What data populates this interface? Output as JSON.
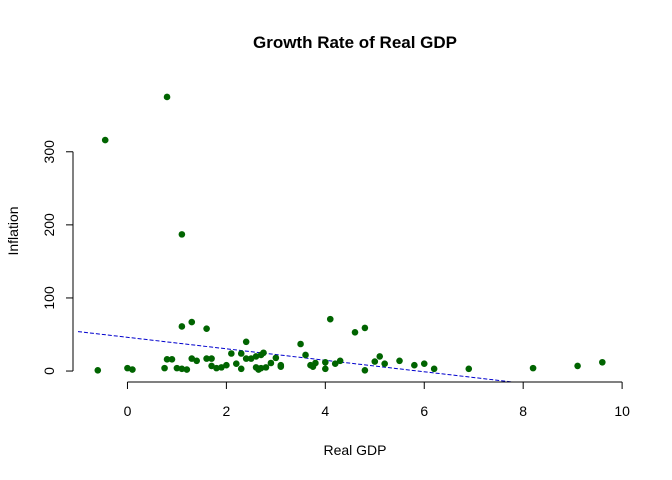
{
  "chart_data": {
    "type": "scatter",
    "title": "Growth Rate of Real GDP",
    "xlabel": "Real GDP",
    "ylabel": "Inflation",
    "xlim": [
      -1.0,
      10.2
    ],
    "ylim": [
      -15,
      390
    ],
    "xticks": [
      0,
      2,
      4,
      6,
      8,
      10
    ],
    "yticks": [
      0,
      100,
      200,
      300
    ],
    "point_color": "#006400",
    "line_color": "#0000cd",
    "grid": false,
    "legend": "none",
    "trend_line": {
      "x": [
        -1.0,
        10.2
      ],
      "y": [
        54,
        -34
      ]
    },
    "points": [
      [
        -0.6,
        1
      ],
      [
        -0.45,
        316
      ],
      [
        0.0,
        4
      ],
      [
        0.1,
        2
      ],
      [
        0.8,
        375
      ],
      [
        0.75,
        4
      ],
      [
        0.8,
        16
      ],
      [
        0.9,
        16
      ],
      [
        1.0,
        4
      ],
      [
        1.1,
        3
      ],
      [
        1.1,
        187
      ],
      [
        1.1,
        61
      ],
      [
        1.2,
        2
      ],
      [
        1.3,
        17
      ],
      [
        1.3,
        67
      ],
      [
        1.4,
        14
      ],
      [
        1.6,
        58
      ],
      [
        1.6,
        17
      ],
      [
        1.7,
        17
      ],
      [
        1.7,
        7
      ],
      [
        1.8,
        4
      ],
      [
        1.9,
        5
      ],
      [
        2.0,
        8
      ],
      [
        2.1,
        24
      ],
      [
        2.2,
        10
      ],
      [
        2.3,
        3
      ],
      [
        2.3,
        24
      ],
      [
        2.4,
        40
      ],
      [
        2.4,
        17
      ],
      [
        2.5,
        17
      ],
      [
        2.6,
        5
      ],
      [
        2.6,
        20
      ],
      [
        2.65,
        2
      ],
      [
        2.7,
        4
      ],
      [
        2.7,
        22
      ],
      [
        2.75,
        25
      ],
      [
        2.8,
        5
      ],
      [
        2.9,
        11
      ],
      [
        3.0,
        18
      ],
      [
        3.1,
        8
      ],
      [
        3.1,
        6
      ],
      [
        3.5,
        37
      ],
      [
        3.6,
        22
      ],
      [
        3.7,
        8
      ],
      [
        3.75,
        6
      ],
      [
        3.8,
        11
      ],
      [
        4.0,
        12
      ],
      [
        4.0,
        3
      ],
      [
        4.1,
        71
      ],
      [
        4.2,
        10
      ],
      [
        4.3,
        14
      ],
      [
        4.6,
        53
      ],
      [
        4.8,
        59
      ],
      [
        4.8,
        1
      ],
      [
        5.0,
        13
      ],
      [
        5.1,
        20
      ],
      [
        5.2,
        10
      ],
      [
        5.5,
        14
      ],
      [
        5.8,
        8
      ],
      [
        6.0,
        10
      ],
      [
        6.2,
        3
      ],
      [
        6.9,
        3
      ],
      [
        8.2,
        4
      ],
      [
        9.1,
        7
      ],
      [
        9.6,
        12
      ]
    ]
  }
}
